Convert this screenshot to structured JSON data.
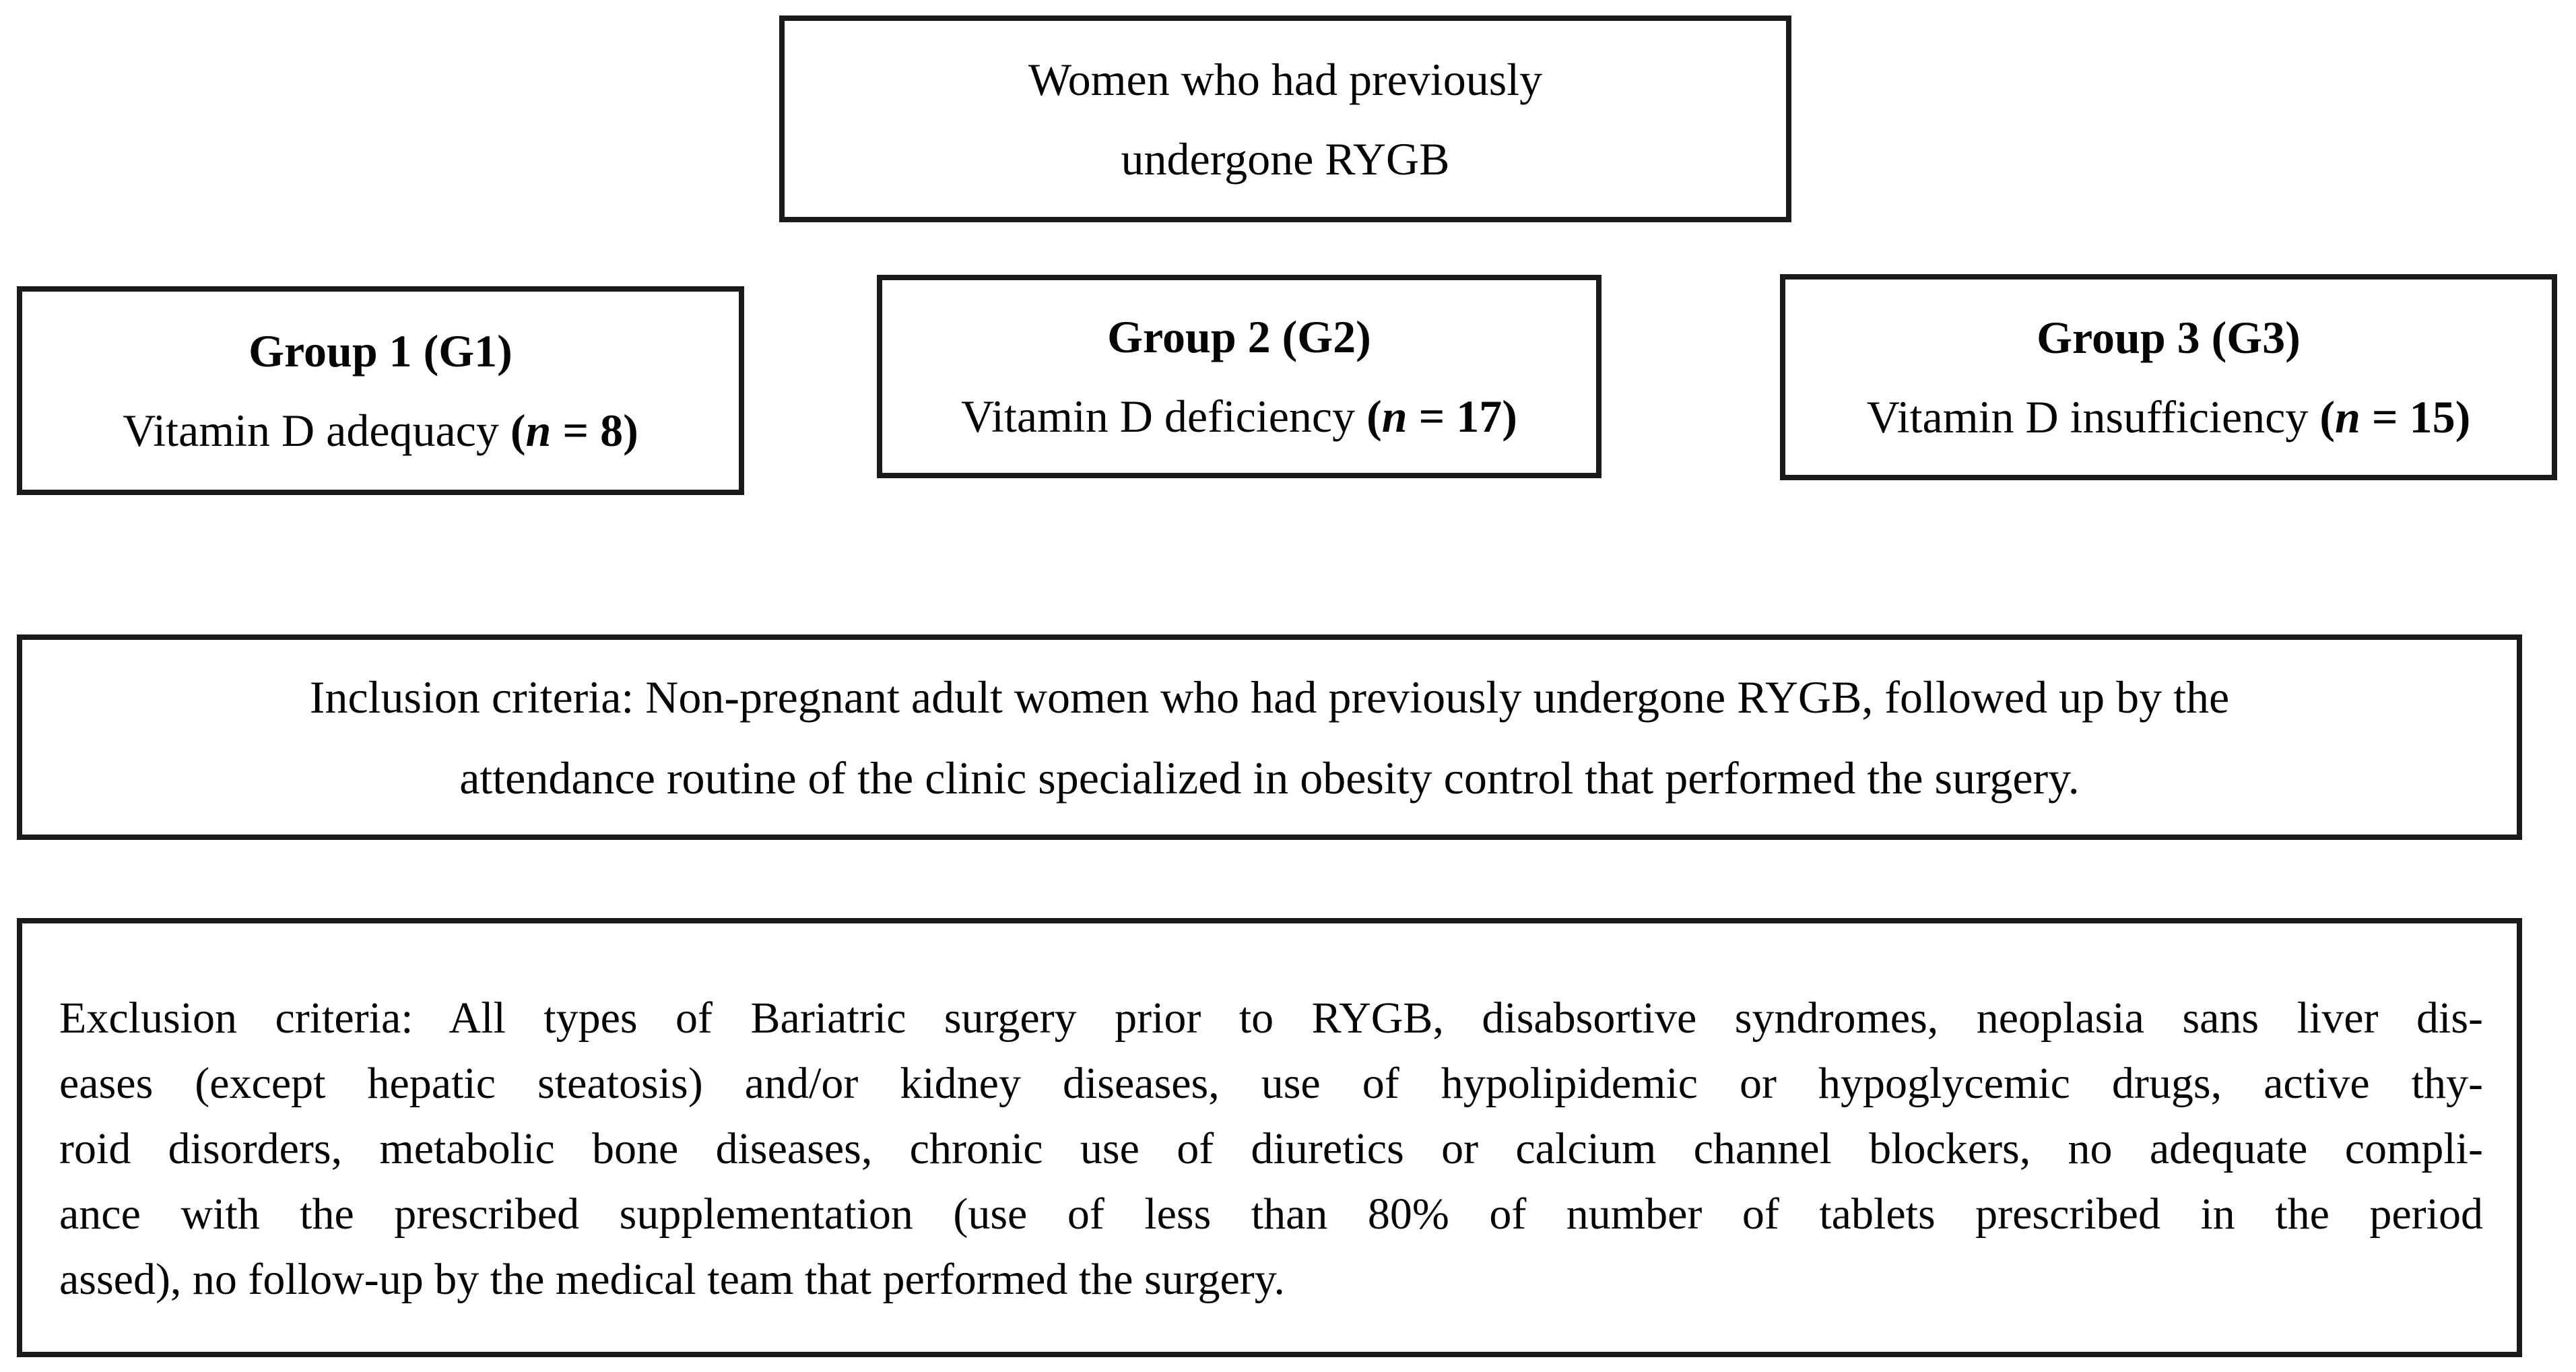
{
  "figure": {
    "top_box": {
      "lines": [
        "Women who had previously",
        "undergone RYGB"
      ]
    },
    "groups": [
      {
        "title": "Group 1 (G1)",
        "label": "Vitamin D adequacy",
        "n_open": " (",
        "n_var": "n",
        "n_rest": " = 8)"
      },
      {
        "title": "Group 2 (G2)",
        "label": "Vitamin D deficiency",
        "n_open": " (",
        "n_var": "n",
        "n_rest": " = 17)"
      },
      {
        "title": "Group 3 (G3)",
        "label": "Vitamin D insufficiency",
        "n_open": " (",
        "n_var": "n",
        "n_rest": " = 15)"
      }
    ],
    "inclusion": {
      "lines": [
        "Inclusion criteria: Non-pregnant adult women who had previously undergone RYGB, followed up by the",
        "attendance routine of the clinic specialized in obesity control that performed the surgery."
      ]
    },
    "exclusion": {
      "lines": [
        "Exclusion criteria: All types of Bariatric surgery prior to RYGB, disabsortive syndromes, neoplasia sans liver dis-",
        "eases (except hepatic steatosis) and/or kidney diseases, use of hypolipidemic or hypoglycemic drugs, active thy-",
        "roid disorders, metabolic bone diseases, chronic use of diuretics or calcium channel blockers, no adequate compli-",
        "ance with the prescribed supplementation (use of less than 80% of number of tablets prescribed in the period",
        "assed), no follow-up by the medical team that performed the surgery."
      ]
    }
  },
  "colors": {
    "border": "#1b1b1b",
    "text": "#050505",
    "background": "#ffffff"
  }
}
